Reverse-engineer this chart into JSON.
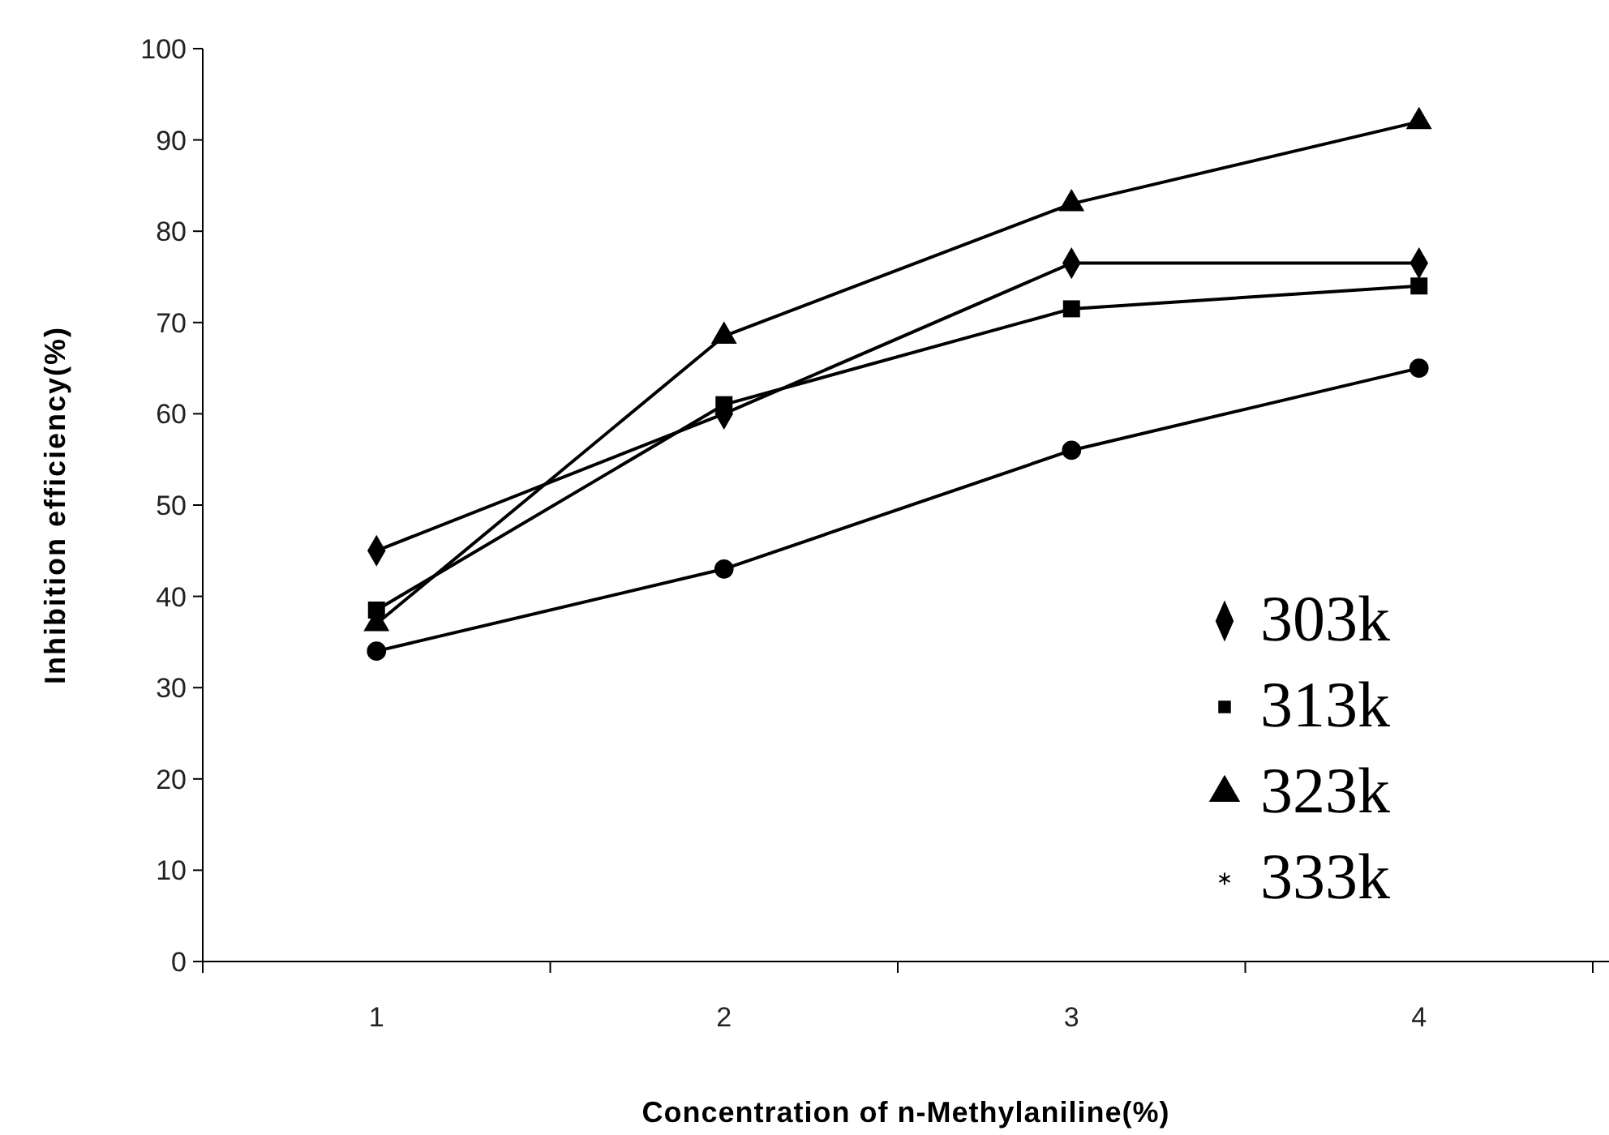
{
  "chart_data": {
    "type": "line",
    "xlabel": "Concentration of n-Methylaniline(%)",
    "ylabel": "Inhibition efficiency(%)",
    "categories": [
      "1",
      "2",
      "3",
      "4"
    ],
    "ylim": [
      0,
      100
    ],
    "yticks": [
      0,
      10,
      20,
      30,
      40,
      50,
      60,
      70,
      80,
      90,
      100
    ],
    "grid": false,
    "legend": "right",
    "line_style": "solid",
    "series": [
      {
        "name": "303k",
        "color": "#000000",
        "marker": "diamond",
        "values": [
          45,
          60,
          76.5,
          76.5
        ]
      },
      {
        "name": "313k",
        "color": "#000000",
        "marker": "square",
        "values": [
          38.5,
          61,
          71.5,
          74
        ]
      },
      {
        "name": "323k",
        "color": "#000000",
        "marker": "triangle",
        "values": [
          37,
          68.5,
          83,
          92
        ]
      },
      {
        "name": "333k",
        "color": "#000000",
        "marker": "circle",
        "values": [
          34,
          43,
          56,
          65
        ]
      }
    ]
  }
}
